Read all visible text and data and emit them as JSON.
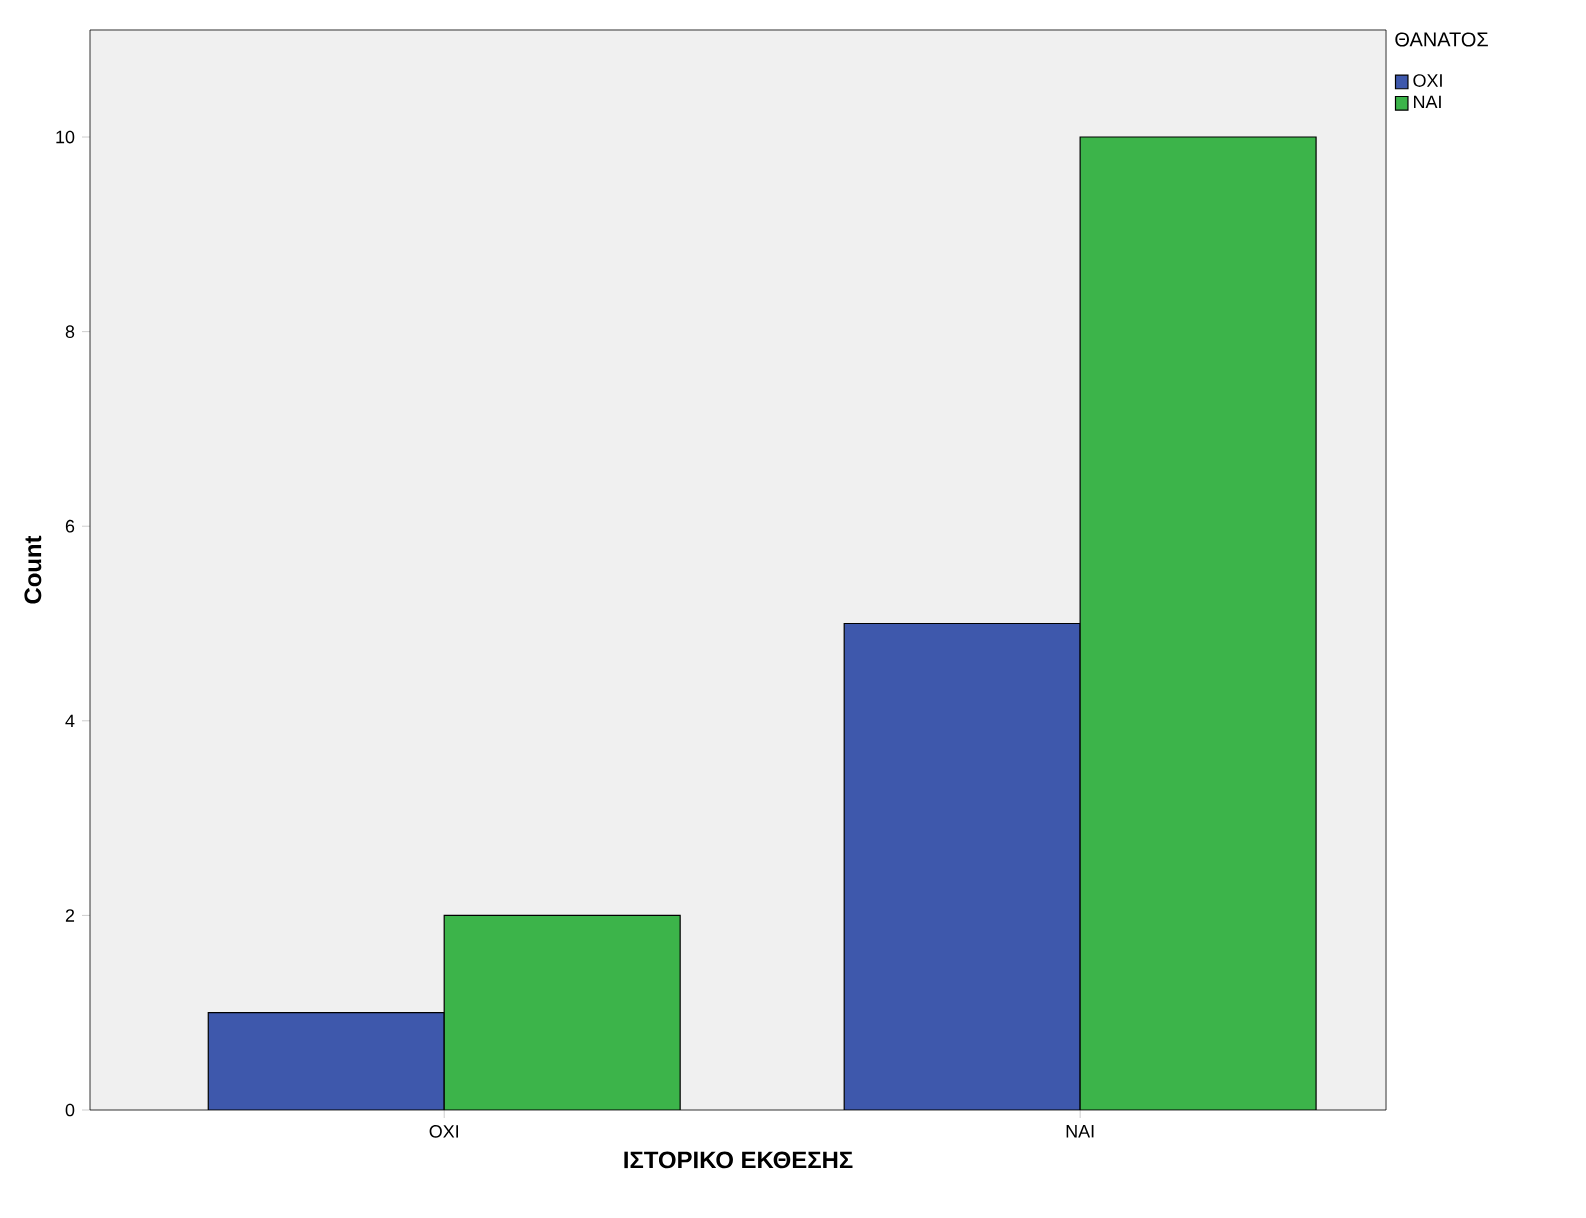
{
  "chart_data": {
    "type": "bar",
    "xlabel": "ΙΣΤΟΡΙΚΟ ΕΚΘΕΣΗΣ",
    "ylabel": "Count",
    "legend_title": "ΘΑΝΑΤΟΣ",
    "categories": [
      "ΟΧΙ",
      "ΝΑΙ"
    ],
    "series": [
      {
        "name": "ΟΧΙ",
        "color": "#3e58ac",
        "values": [
          1,
          5
        ]
      },
      {
        "name": "ΝΑΙ",
        "color": "#3cb44a",
        "values": [
          2,
          10
        ]
      }
    ],
    "ylim": [
      0,
      11.1
    ],
    "yticks": [
      0,
      2,
      4,
      6,
      8,
      10
    ],
    "grid": false,
    "legend": "top right"
  }
}
